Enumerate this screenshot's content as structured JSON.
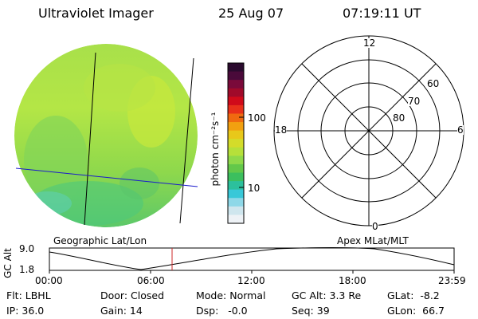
{
  "header": {
    "instrument": "Ultraviolet Imager",
    "date": "25 Aug 07",
    "time": "07:19:11 UT"
  },
  "colorbar": {
    "unit_label": "photon cm⁻²s⁻¹",
    "tick_labels": [
      "100",
      "10"
    ],
    "colors_top_to_bottom": [
      "#2a0a2e",
      "#4a0a3a",
      "#7a0a3a",
      "#a00a2a",
      "#d00a1a",
      "#e8301a",
      "#f06a10",
      "#f2a010",
      "#e8c81a",
      "#d4dc2a",
      "#b6e03a",
      "#8fd94a",
      "#63c84a",
      "#3cbf5e",
      "#2cc09c",
      "#38c8d8",
      "#8ed8e8",
      "#cfe6ee",
      "#eef2f6"
    ]
  },
  "polar_plot": {
    "hour_labels": {
      "top": "12",
      "bottom": "0",
      "left": "18",
      "right": "6"
    },
    "lat_labels": [
      "60",
      "70",
      "80"
    ]
  },
  "timeline": {
    "left_label": "Geographic Lat/Lon",
    "right_label": "Apex MLat/MLT",
    "y_axis_label": "GC Alt",
    "y_ticks": [
      "9.0",
      "1.8"
    ],
    "x_ticks": [
      "00:00",
      "06:00",
      "12:00",
      "18:00",
      "23:59"
    ],
    "current_time_marker": "07:19:11"
  },
  "status": {
    "row1": {
      "flt": "Flt: LBHL",
      "door": "Door: Closed",
      "mode": "Mode: Normal",
      "gc_alt": "GC Alt: 3.3 Re",
      "glat": "GLat:  -8.2"
    },
    "row2": {
      "ip": "IP: 36.0",
      "gain": "Gain: 14",
      "dsp": "Dsp:   -0.0",
      "seq": "Seq: 39",
      "glon": "GLon:  66.7"
    }
  }
}
